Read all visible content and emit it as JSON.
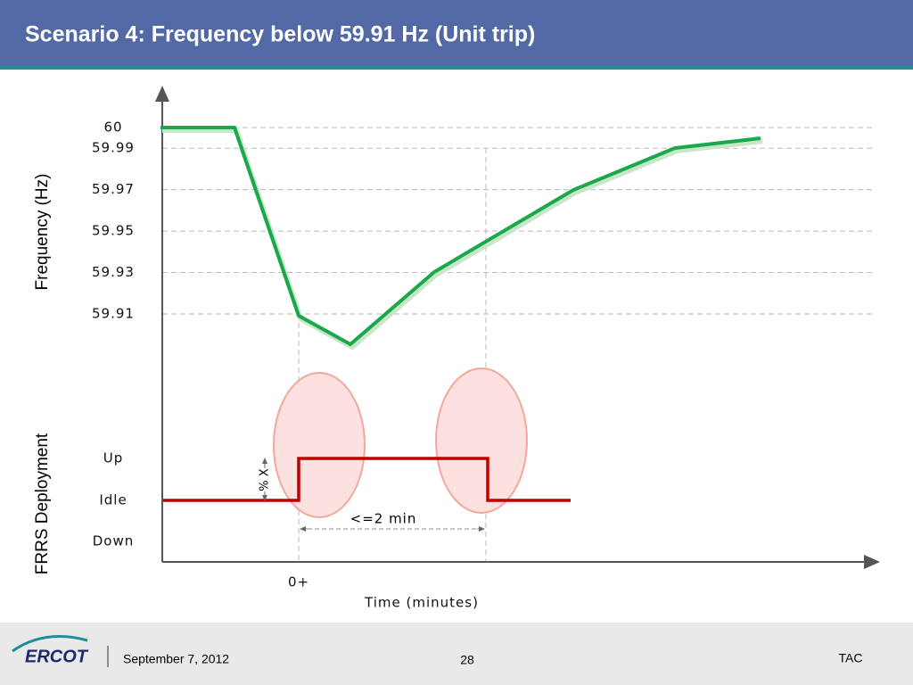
{
  "chart_data": {
    "type": "line",
    "title": "Scenario 4: Frequency below 59.91 Hz  (Unit trip)",
    "y_label": "Frequency (Hz)",
    "ylim": [
      59.91,
      60
    ],
    "yticks": [
      60,
      59.99,
      59.97,
      59.95,
      59.93,
      59.91
    ],
    "grid": true,
    "deployment_label": "FRRS Deployment",
    "deployment_levels": [
      "Up",
      "Idle",
      "Down"
    ],
    "x_label": "Time (minutes)",
    "x_tick": "0+",
    "annotations": [
      "% X",
      "<=2 min"
    ]
  },
  "footer": {
    "logo": "ERCOT",
    "date": "September 7, 2012",
    "page": "28",
    "right": "TAC"
  }
}
